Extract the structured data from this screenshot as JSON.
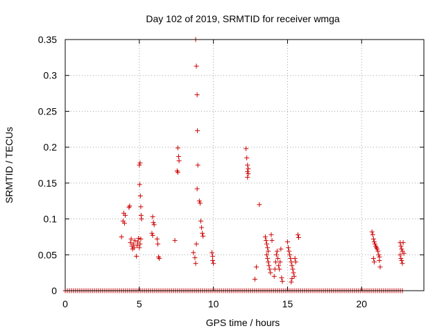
{
  "chart_data": {
    "type": "scatter",
    "title": "Day 102 of 2019, SRMTID for receiver wmga",
    "xlabel": "GPS time / hours",
    "ylabel": "SRMTID / TECUs",
    "xlim": [
      0,
      24.2
    ],
    "ylim": [
      0,
      0.35
    ],
    "x_ticks": [
      0,
      5,
      10,
      15,
      20
    ],
    "x_tick_labels": [
      "0",
      "5",
      "10",
      "15",
      "20"
    ],
    "y_ticks": [
      0,
      0.05,
      0.1,
      0.15,
      0.2,
      0.25,
      0.3,
      0.35
    ],
    "y_tick_labels": [
      "0",
      "0.05",
      "0.1",
      "0.15",
      "0.2",
      "0.25",
      "0.3",
      "0.35"
    ],
    "grid": true,
    "marker": "+",
    "marker_color": "#cc0000",
    "baseline_range": [
      0,
      22.8
    ],
    "baseline_value": 0,
    "series": [
      {
        "name": "SRMTID",
        "points": [
          [
            3.8,
            0.075
          ],
          [
            3.9,
            0.097
          ],
          [
            3.95,
            0.108
          ],
          [
            4.0,
            0.094
          ],
          [
            4.05,
            0.105
          ],
          [
            4.3,
            0.116
          ],
          [
            4.35,
            0.118
          ],
          [
            4.4,
            0.067
          ],
          [
            4.45,
            0.072
          ],
          [
            4.5,
            0.062
          ],
          [
            4.55,
            0.058
          ],
          [
            4.6,
            0.065
          ],
          [
            4.65,
            0.06
          ],
          [
            4.7,
            0.07
          ],
          [
            4.8,
            0.048
          ],
          [
            4.85,
            0.063
          ],
          [
            4.9,
            0.068
          ],
          [
            4.95,
            0.073
          ],
          [
            5.0,
            0.06
          ],
          [
            5.05,
            0.065
          ],
          [
            5.1,
            0.072
          ],
          [
            5.0,
            0.175
          ],
          [
            5.05,
            0.178
          ],
          [
            5.02,
            0.148
          ],
          [
            5.07,
            0.132
          ],
          [
            5.1,
            0.117
          ],
          [
            5.12,
            0.105
          ],
          [
            5.15,
            0.1
          ],
          [
            5.9,
            0.103
          ],
          [
            5.95,
            0.095
          ],
          [
            6.0,
            0.092
          ],
          [
            5.85,
            0.08
          ],
          [
            5.9,
            0.077
          ],
          [
            6.2,
            0.072
          ],
          [
            6.25,
            0.065
          ],
          [
            6.3,
            0.047
          ],
          [
            6.35,
            0.045
          ],
          [
            7.4,
            0.07
          ],
          [
            7.6,
            0.199
          ],
          [
            7.65,
            0.187
          ],
          [
            7.68,
            0.181
          ],
          [
            7.55,
            0.167
          ],
          [
            7.6,
            0.165
          ],
          [
            8.8,
            0.35
          ],
          [
            8.85,
            0.313
          ],
          [
            8.9,
            0.273
          ],
          [
            8.92,
            0.223
          ],
          [
            8.95,
            0.175
          ],
          [
            8.9,
            0.142
          ],
          [
            9.05,
            0.125
          ],
          [
            9.1,
            0.122
          ],
          [
            9.15,
            0.097
          ],
          [
            9.2,
            0.088
          ],
          [
            9.25,
            0.08
          ],
          [
            9.3,
            0.076
          ],
          [
            8.65,
            0.053
          ],
          [
            8.75,
            0.046
          ],
          [
            8.85,
            0.065
          ],
          [
            8.8,
            0.038
          ],
          [
            9.9,
            0.053
          ],
          [
            9.95,
            0.048
          ],
          [
            10.0,
            0.038
          ],
          [
            9.95,
            0.042
          ],
          [
            12.2,
            0.198
          ],
          [
            12.25,
            0.185
          ],
          [
            12.3,
            0.175
          ],
          [
            12.35,
            0.17
          ],
          [
            12.3,
            0.166
          ],
          [
            12.35,
            0.163
          ],
          [
            12.3,
            0.158
          ],
          [
            12.8,
            0.016
          ],
          [
            12.9,
            0.033
          ],
          [
            13.1,
            0.12
          ],
          [
            13.5,
            0.075
          ],
          [
            13.55,
            0.07
          ],
          [
            13.6,
            0.065
          ],
          [
            13.65,
            0.06
          ],
          [
            13.7,
            0.055
          ],
          [
            13.6,
            0.05
          ],
          [
            13.65,
            0.045
          ],
          [
            13.7,
            0.04
          ],
          [
            13.75,
            0.035
          ],
          [
            13.8,
            0.03
          ],
          [
            13.85,
            0.025
          ],
          [
            13.9,
            0.078
          ],
          [
            13.95,
            0.07
          ],
          [
            14.1,
            0.02
          ],
          [
            14.15,
            0.03
          ],
          [
            14.2,
            0.04
          ],
          [
            14.25,
            0.05
          ],
          [
            14.3,
            0.055
          ],
          [
            14.35,
            0.045
          ],
          [
            14.4,
            0.035
          ],
          [
            14.45,
            0.03
          ],
          [
            14.5,
            0.04
          ],
          [
            14.55,
            0.058
          ],
          [
            14.6,
            0.018
          ],
          [
            14.65,
            0.013
          ],
          [
            15.0,
            0.068
          ],
          [
            15.05,
            0.06
          ],
          [
            15.1,
            0.055
          ],
          [
            15.15,
            0.05
          ],
          [
            15.2,
            0.045
          ],
          [
            15.25,
            0.04
          ],
          [
            15.3,
            0.035
          ],
          [
            15.35,
            0.03
          ],
          [
            15.4,
            0.025
          ],
          [
            15.45,
            0.02
          ],
          [
            15.5,
            0.045
          ],
          [
            15.55,
            0.04
          ],
          [
            15.25,
            0.012
          ],
          [
            15.3,
            0.017
          ],
          [
            15.7,
            0.078
          ],
          [
            15.75,
            0.074
          ],
          [
            20.7,
            0.082
          ],
          [
            20.75,
            0.078
          ],
          [
            20.8,
            0.072
          ],
          [
            20.85,
            0.068
          ],
          [
            20.9,
            0.065
          ],
          [
            20.95,
            0.062
          ],
          [
            21.0,
            0.06
          ],
          [
            21.05,
            0.058
          ],
          [
            21.1,
            0.055
          ],
          [
            21.15,
            0.05
          ],
          [
            21.2,
            0.047
          ],
          [
            20.8,
            0.045
          ],
          [
            20.85,
            0.04
          ],
          [
            21.25,
            0.033
          ],
          [
            21.2,
            0.042
          ],
          [
            22.6,
            0.067
          ],
          [
            22.65,
            0.062
          ],
          [
            22.7,
            0.058
          ],
          [
            22.75,
            0.055
          ],
          [
            22.6,
            0.05
          ],
          [
            22.65,
            0.045
          ],
          [
            22.7,
            0.042
          ],
          [
            22.75,
            0.038
          ],
          [
            22.8,
            0.067
          ],
          [
            22.85,
            0.052
          ]
        ]
      }
    ]
  }
}
